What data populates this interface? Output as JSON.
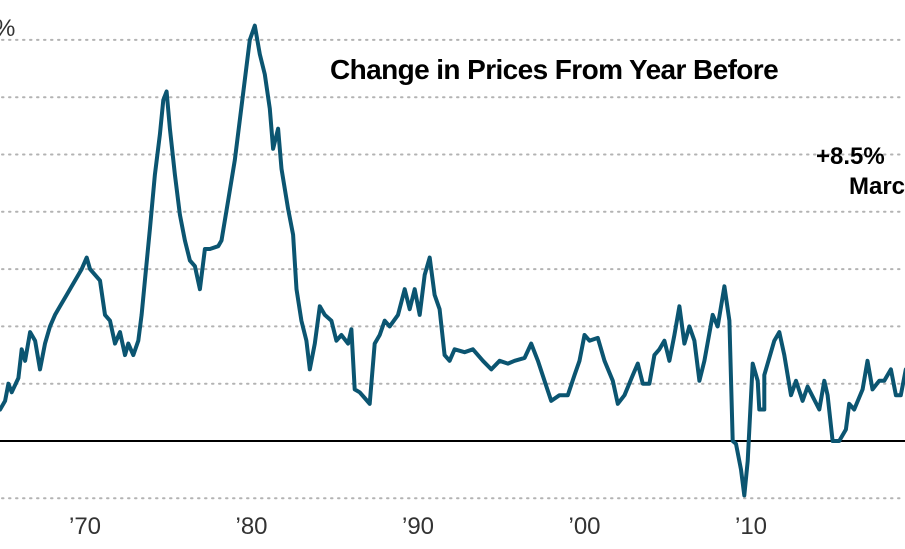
{
  "chart_data": {
    "type": "line",
    "title": "Change in Prices From Year Before",
    "xlabel": "",
    "ylabel": "",
    "y_unit_label": "%",
    "ylim": [
      -2,
      14
    ],
    "xlim": [
      1964.9,
      2019.3
    ],
    "y_gridlines": [
      -2,
      0,
      2,
      4,
      6,
      8,
      10,
      12,
      14
    ],
    "zero_line": 0,
    "grid": true,
    "x_ticks": [
      {
        "value": 1970,
        "label": "’70"
      },
      {
        "value": 1980,
        "label": "’80"
      },
      {
        "value": 1990,
        "label": "’90"
      },
      {
        "value": 2000,
        "label": "’00"
      },
      {
        "value": 2010,
        "label": "’10"
      },
      {
        "value": 2020,
        "label": "’"
      }
    ],
    "annotations": [
      {
        "text": "+8.5%",
        "note": "latest value label (cut off at right edge)"
      },
      {
        "text": "Marc",
        "note": "partially visible month label"
      }
    ],
    "series": [
      {
        "name": "Change in prices from year before",
        "color": "#0b5571",
        "x": [
          1964.9,
          1965.2,
          1965.4,
          1965.6,
          1966.0,
          1966.2,
          1966.4,
          1966.7,
          1967.0,
          1967.3,
          1967.6,
          1967.9,
          1968.2,
          1968.5,
          1968.9,
          1969.2,
          1969.8,
          1970.1,
          1970.3,
          1970.9,
          1971.2,
          1971.5,
          1971.8,
          1972.1,
          1972.4,
          1972.6,
          1972.9,
          1973.2,
          1973.4,
          1973.6,
          1973.9,
          1974.2,
          1974.5,
          1974.7,
          1974.9,
          1975.1,
          1975.4,
          1975.7,
          1976.0,
          1976.3,
          1976.6,
          1976.9,
          1977.2,
          1977.5,
          1978.0,
          1978.2,
          1978.6,
          1979.0,
          1979.3,
          1979.6,
          1979.9,
          1980.2,
          1980.5,
          1980.8,
          1981.1,
          1981.3,
          1981.6,
          1981.8,
          1982.2,
          1982.5,
          1982.7,
          1983.0,
          1983.3,
          1983.5,
          1983.8,
          1984.1,
          1984.4,
          1984.8,
          1985.1,
          1985.4,
          1985.8,
          1986.0,
          1986.2,
          1986.5,
          1986.8,
          1987.1,
          1987.4,
          1987.7,
          1988.0,
          1988.3,
          1988.8,
          1989.2,
          1989.5,
          1989.8,
          1990.1,
          1990.4,
          1990.7,
          1991.0,
          1991.3,
          1991.6,
          1991.9,
          1992.2,
          1992.8,
          1993.3,
          1993.9,
          1994.4,
          1994.9,
          1995.4,
          1995.8,
          1996.4,
          1996.8,
          1997.2,
          1997.6,
          1998.0,
          1998.5,
          1999.0,
          1999.4,
          1999.7,
          2000.0,
          2000.3,
          2000.8,
          2001.2,
          2001.7,
          2002.0,
          2002.4,
          2002.9,
          2003.2,
          2003.5,
          2003.9,
          2004.2,
          2004.5,
          2004.8,
          2005.1,
          2005.4,
          2005.7,
          2006.0,
          2006.3,
          2006.6,
          2006.9,
          2007.2,
          2007.7,
          2008.0,
          2008.4,
          2008.7,
          2008.9,
          2009.1,
          2009.4,
          2009.6,
          2009.8,
          2010.1,
          2010.4,
          2010.5,
          2010.8,
          2010.8,
          2011.4,
          2011.7,
          2012.0,
          2012.4,
          2012.7,
          2013.1,
          2013.4,
          2014.1,
          2014.4,
          2014.6,
          2014.9,
          2015.3,
          2015.7,
          2015.9,
          2016.2,
          2016.7,
          2017.0,
          2017.3,
          2017.7,
          2018.0,
          2018.4,
          2018.7,
          2019.0,
          2019.3
        ],
        "values": [
          1.1,
          1.4,
          2.0,
          1.7,
          2.2,
          3.2,
          2.8,
          3.8,
          3.5,
          2.5,
          3.4,
          4.0,
          4.4,
          4.7,
          5.1,
          5.4,
          6.0,
          6.4,
          6.0,
          5.6,
          4.4,
          4.2,
          3.4,
          3.8,
          3.0,
          3.4,
          3.0,
          3.5,
          4.4,
          5.6,
          7.4,
          9.3,
          10.7,
          11.9,
          12.2,
          10.9,
          9.3,
          7.9,
          7.0,
          6.3,
          6.1,
          5.3,
          6.7,
          6.7,
          6.8,
          7.0,
          8.4,
          9.8,
          11.2,
          12.6,
          14.0,
          14.5,
          13.5,
          12.8,
          11.6,
          10.2,
          10.9,
          9.5,
          8.1,
          7.2,
          5.3,
          4.2,
          3.5,
          2.5,
          3.4,
          4.7,
          4.4,
          4.2,
          3.5,
          3.7,
          3.4,
          3.9,
          1.8,
          1.7,
          1.5,
          1.3,
          3.4,
          3.7,
          4.2,
          4.0,
          4.4,
          5.3,
          4.6,
          5.3,
          4.4,
          5.8,
          6.4,
          5.1,
          4.6,
          3.0,
          2.8,
          3.2,
          3.1,
          3.2,
          2.8,
          2.5,
          2.8,
          2.7,
          2.8,
          2.9,
          3.4,
          2.8,
          2.1,
          1.4,
          1.6,
          1.6,
          2.3,
          2.8,
          3.7,
          3.5,
          3.6,
          2.8,
          2.1,
          1.3,
          1.6,
          2.3,
          2.7,
          2.0,
          2.0,
          3.0,
          3.2,
          3.5,
          2.8,
          3.7,
          4.7,
          3.4,
          4.0,
          3.5,
          2.1,
          2.8,
          4.4,
          4.0,
          5.4,
          4.2,
          0.0,
          -0.1,
          -1.0,
          -1.9,
          -0.7,
          2.7,
          2.1,
          1.1,
          1.1,
          2.3,
          3.5,
          3.8,
          3.0,
          1.6,
          2.1,
          1.4,
          1.9,
          1.1,
          2.1,
          1.6,
          0.0,
          0.0,
          0.4,
          1.3,
          1.1,
          1.8,
          2.8,
          1.8,
          2.1,
          2.1,
          2.5,
          1.6,
          1.6,
          2.5
        ]
      }
    ]
  }
}
